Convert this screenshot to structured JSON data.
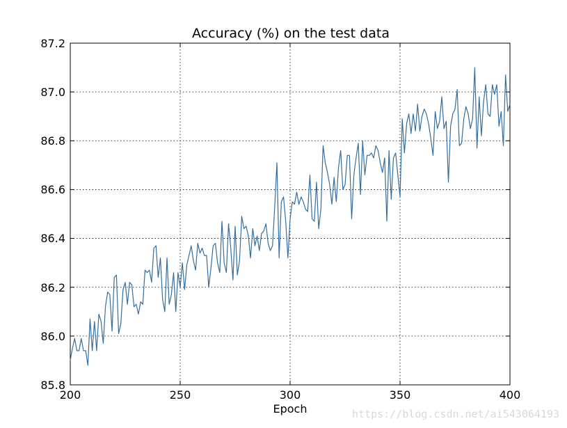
{
  "chart_data": {
    "type": "line",
    "title": "Accuracy (%) on the test data",
    "xlabel": "Epoch",
    "ylabel": "",
    "xlim": [
      200,
      400
    ],
    "ylim": [
      85.8,
      87.2
    ],
    "x_ticks": [
      "200",
      "250",
      "300",
      "350",
      "400"
    ],
    "y_ticks": [
      "85.8",
      "86.0",
      "86.2",
      "86.4",
      "86.6",
      "86.8",
      "87.0",
      "87.2"
    ],
    "grid": true,
    "line_color": "#336ea0",
    "series": [
      {
        "x_start": 200,
        "x_step": 1,
        "values": [
          85.9,
          85.95,
          85.99,
          85.94,
          85.94,
          85.99,
          85.94,
          85.94,
          85.88,
          86.07,
          85.94,
          86.06,
          85.94,
          86.09,
          86.06,
          85.97,
          86.12,
          86.18,
          86.17,
          86.02,
          86.24,
          86.25,
          86.01,
          86.05,
          86.19,
          86.22,
          86.13,
          86.22,
          86.21,
          86.12,
          86.13,
          86.09,
          86.14,
          86.13,
          86.27,
          86.26,
          86.27,
          86.22,
          86.36,
          86.37,
          86.24,
          86.32,
          86.15,
          86.1,
          86.32,
          86.13,
          86.17,
          86.26,
          86.1,
          86.26,
          86.2,
          86.3,
          86.19,
          86.29,
          86.33,
          86.37,
          86.31,
          86.27,
          86.38,
          86.34,
          86.36,
          86.33,
          86.33,
          86.2,
          86.28,
          86.37,
          86.38,
          86.3,
          86.26,
          86.47,
          86.3,
          86.26,
          86.46,
          86.36,
          86.23,
          86.45,
          86.25,
          86.31,
          86.49,
          86.44,
          86.45,
          86.41,
          86.32,
          86.44,
          86.37,
          86.41,
          86.35,
          86.42,
          86.43,
          86.46,
          86.38,
          86.35,
          86.37,
          86.53,
          86.71,
          86.32,
          86.55,
          86.57,
          86.47,
          86.32,
          86.48,
          86.55,
          86.54,
          86.59,
          86.54,
          86.57,
          86.55,
          86.52,
          86.51,
          86.66,
          86.48,
          86.47,
          86.63,
          86.44,
          86.52,
          86.78,
          86.71,
          86.67,
          86.62,
          86.54,
          86.65,
          86.55,
          86.69,
          86.76,
          86.6,
          86.62,
          86.74,
          86.74,
          86.48,
          86.66,
          86.73,
          86.79,
          86.58,
          86.8,
          86.66,
          86.74,
          86.74,
          86.75,
          86.73,
          86.78,
          86.76,
          86.71,
          86.67,
          86.73,
          86.47,
          86.76,
          86.56,
          86.73,
          86.75,
          86.66,
          86.57,
          86.89,
          86.75,
          86.87,
          86.91,
          86.83,
          86.91,
          86.84,
          86.95,
          86.84,
          86.9,
          86.93,
          86.91,
          86.87,
          86.81,
          86.74,
          86.92,
          86.85,
          86.88,
          86.98,
          86.85,
          86.88,
          86.63,
          86.86,
          86.91,
          86.93,
          87.01,
          86.78,
          86.79,
          86.89,
          86.94,
          86.91,
          86.85,
          86.89,
          87.1,
          86.77,
          86.98,
          86.82,
          86.96,
          87.03,
          86.91,
          86.9,
          87.03,
          86.99,
          87.03,
          86.86,
          86.92,
          86.78,
          87.07,
          86.92,
          86.95
        ]
      }
    ]
  },
  "watermark": "https://blog.csdn.net/ai543064193"
}
